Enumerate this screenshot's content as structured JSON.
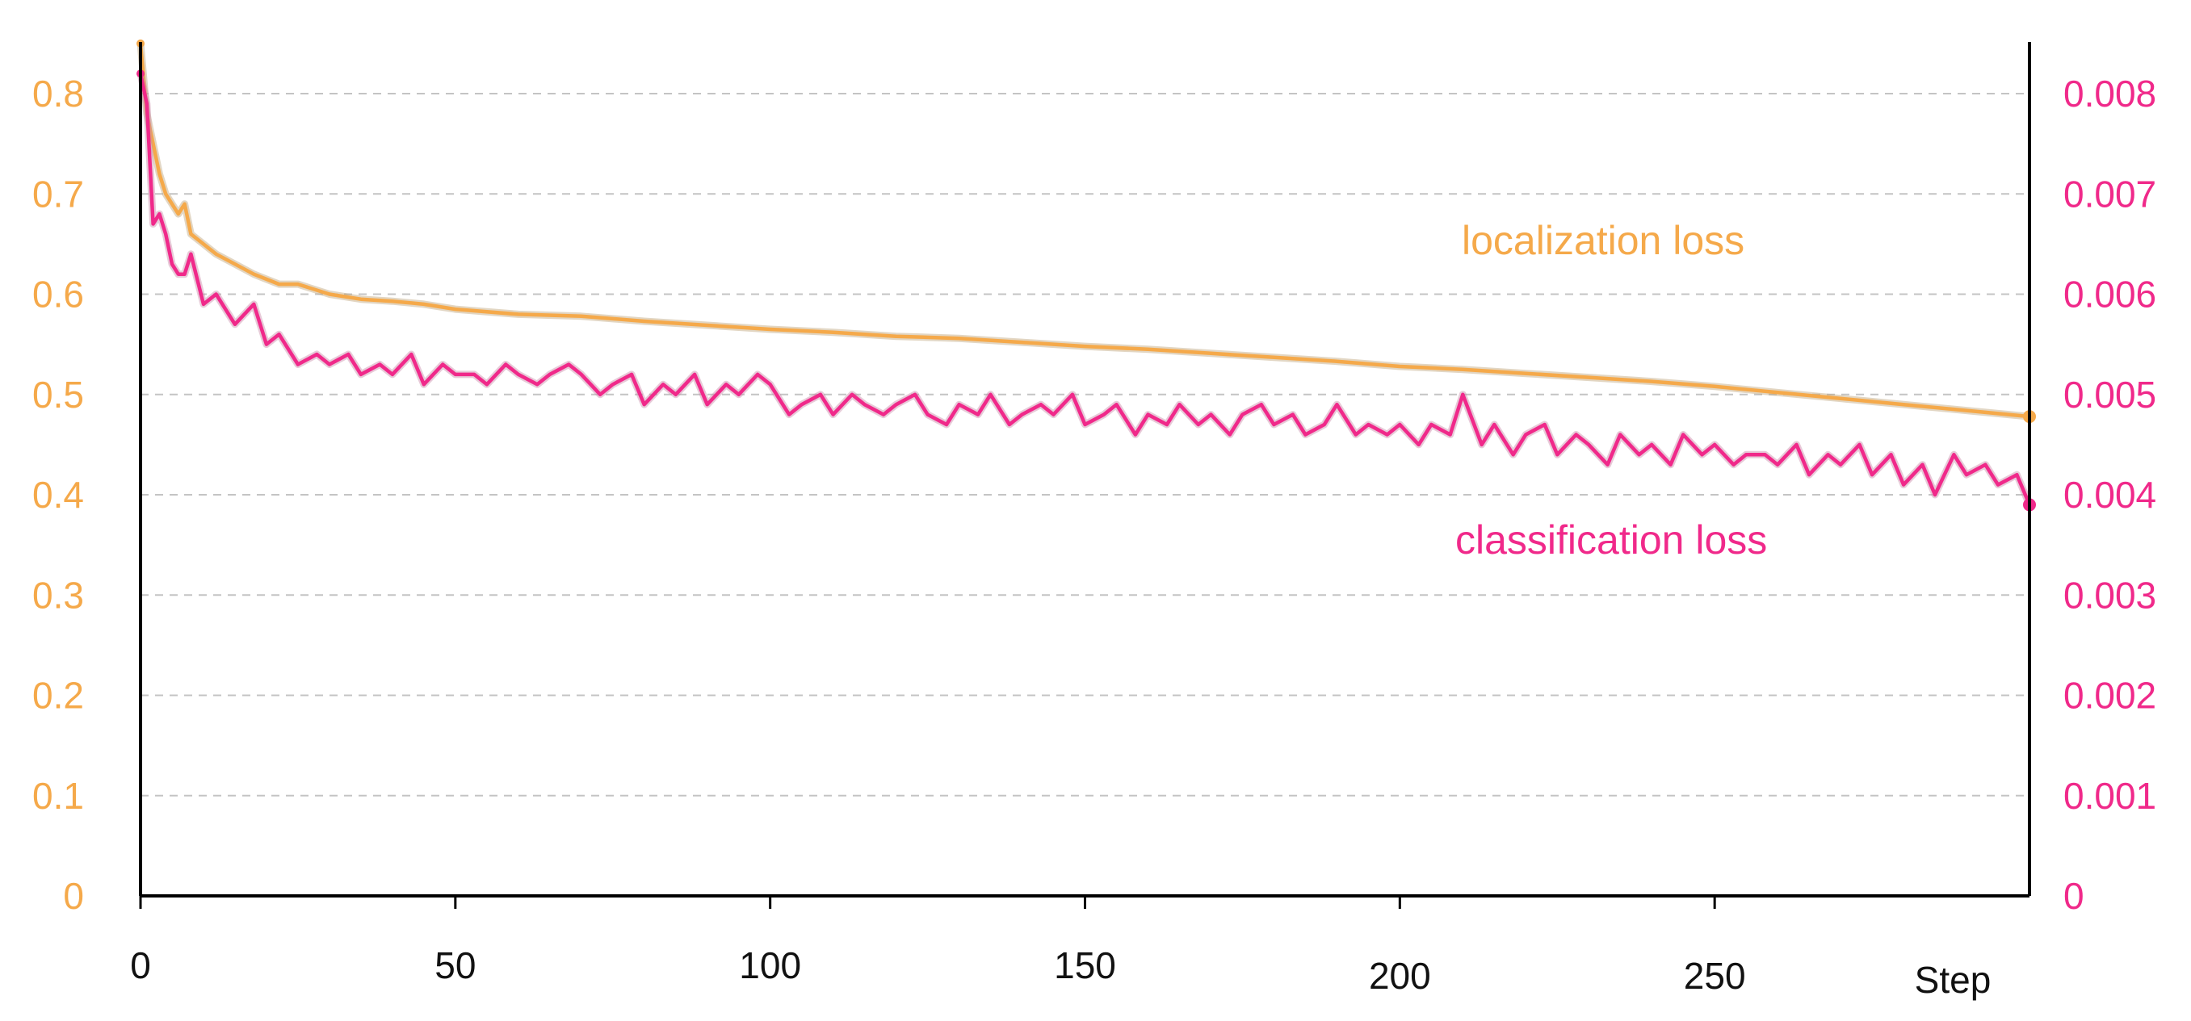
{
  "chart_data": {
    "type": "line",
    "title": "",
    "xlabel": "Step",
    "x_ticks": [
      "0",
      "50",
      "100",
      "150",
      "200",
      "250"
    ],
    "xlim": [
      0,
      300
    ],
    "y_left": {
      "ticks": [
        "0",
        "0.1",
        "0.2",
        "0.3",
        "0.4",
        "0.5",
        "0.6",
        "0.7",
        "0.8"
      ],
      "range": [
        0,
        0.85
      ],
      "color": "#f5a94a"
    },
    "y_right": {
      "ticks": [
        "0",
        "0.001",
        "0.002",
        "0.003",
        "0.004",
        "0.005",
        "0.006",
        "0.007",
        "0.008"
      ],
      "range": [
        0,
        0.0085
      ],
      "color": "#f0298a"
    },
    "grid": "horizontal dashed",
    "series": [
      {
        "name": "localization loss",
        "axis": "left",
        "color": "#f5a94a",
        "x": [
          0,
          1,
          2,
          3,
          4,
          5,
          6,
          7,
          8,
          10,
          12,
          15,
          18,
          20,
          22,
          25,
          30,
          35,
          40,
          45,
          50,
          60,
          70,
          80,
          90,
          100,
          110,
          120,
          130,
          140,
          150,
          160,
          170,
          180,
          190,
          200,
          210,
          220,
          230,
          240,
          250,
          260,
          270,
          280,
          290,
          300
        ],
        "values": [
          0.85,
          0.78,
          0.75,
          0.72,
          0.7,
          0.69,
          0.68,
          0.69,
          0.66,
          0.65,
          0.64,
          0.63,
          0.62,
          0.615,
          0.61,
          0.61,
          0.6,
          0.595,
          0.593,
          0.59,
          0.585,
          0.58,
          0.578,
          0.573,
          0.569,
          0.565,
          0.562,
          0.558,
          0.556,
          0.552,
          0.548,
          0.545,
          0.541,
          0.537,
          0.533,
          0.528,
          0.525,
          0.521,
          0.517,
          0.513,
          0.508,
          0.502,
          0.496,
          0.49,
          0.484,
          0.478
        ]
      },
      {
        "name": "classification loss",
        "axis": "right",
        "color": "#f0298a",
        "x": [
          0,
          1,
          2,
          3,
          4,
          5,
          6,
          7,
          8,
          10,
          12,
          15,
          18,
          20,
          22,
          25,
          28,
          30,
          33,
          35,
          38,
          40,
          43,
          45,
          48,
          50,
          53,
          55,
          58,
          60,
          63,
          65,
          68,
          70,
          73,
          75,
          78,
          80,
          83,
          85,
          88,
          90,
          93,
          95,
          98,
          100,
          103,
          105,
          108,
          110,
          113,
          115,
          118,
          120,
          123,
          125,
          128,
          130,
          133,
          135,
          138,
          140,
          143,
          145,
          148,
          150,
          153,
          155,
          158,
          160,
          163,
          165,
          168,
          170,
          173,
          175,
          178,
          180,
          183,
          185,
          188,
          190,
          193,
          195,
          198,
          200,
          203,
          205,
          208,
          210,
          213,
          215,
          218,
          220,
          223,
          225,
          228,
          230,
          233,
          235,
          238,
          240,
          243,
          245,
          248,
          250,
          253,
          255,
          258,
          260,
          263,
          265,
          268,
          270,
          273,
          275,
          278,
          280,
          283,
          285,
          288,
          290,
          293,
          295,
          298,
          300
        ],
        "values": [
          0.0082,
          0.0079,
          0.0067,
          0.0068,
          0.0066,
          0.0063,
          0.0062,
          0.0062,
          0.0064,
          0.0059,
          0.006,
          0.0057,
          0.0059,
          0.0055,
          0.0056,
          0.0053,
          0.0054,
          0.0053,
          0.0054,
          0.0052,
          0.0053,
          0.0052,
          0.0054,
          0.0051,
          0.0053,
          0.0052,
          0.0052,
          0.0051,
          0.0053,
          0.0052,
          0.0051,
          0.0052,
          0.0053,
          0.0052,
          0.005,
          0.0051,
          0.0052,
          0.0049,
          0.0051,
          0.005,
          0.0052,
          0.0049,
          0.0051,
          0.005,
          0.0052,
          0.0051,
          0.0048,
          0.0049,
          0.005,
          0.0048,
          0.005,
          0.0049,
          0.0048,
          0.0049,
          0.005,
          0.0048,
          0.0047,
          0.0049,
          0.0048,
          0.005,
          0.0047,
          0.0048,
          0.0049,
          0.0048,
          0.005,
          0.0047,
          0.0048,
          0.0049,
          0.0046,
          0.0048,
          0.0047,
          0.0049,
          0.0047,
          0.0048,
          0.0046,
          0.0048,
          0.0049,
          0.0047,
          0.0048,
          0.0046,
          0.0047,
          0.0049,
          0.0046,
          0.0047,
          0.0046,
          0.0047,
          0.0045,
          0.0047,
          0.0046,
          0.005,
          0.0045,
          0.0047,
          0.0044,
          0.0046,
          0.0047,
          0.0044,
          0.0046,
          0.0045,
          0.0043,
          0.0046,
          0.0044,
          0.0045,
          0.0043,
          0.0046,
          0.0044,
          0.0045,
          0.0043,
          0.0044,
          0.0044,
          0.0043,
          0.0045,
          0.0042,
          0.0044,
          0.0043,
          0.0045,
          0.0042,
          0.0044,
          0.0041,
          0.0043,
          0.004,
          0.0044,
          0.0042,
          0.0043,
          0.0041,
          0.0042,
          0.0039
        ]
      }
    ]
  }
}
